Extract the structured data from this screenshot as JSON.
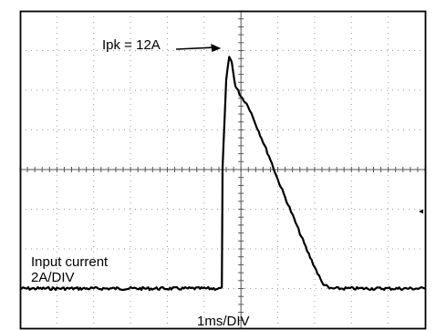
{
  "chart_data": {
    "type": "line",
    "title": "",
    "annotation": "Ipk = 12A",
    "channel_label": "Input current",
    "vertical_scale": "2A/DIV",
    "time_scale": "1ms/DIV",
    "grid": true,
    "x_unit": "ms",
    "y_unit": "A",
    "xlim": [
      0,
      11
    ],
    "ylim": [
      -2.0,
      14.0
    ],
    "series": [
      {
        "color": "#000000",
        "x": [
          0.0,
          1.0,
          2.0,
          3.0,
          4.0,
          5.0,
          5.48,
          5.5,
          5.6,
          5.68,
          5.75,
          5.85,
          6.0,
          6.2,
          6.4,
          6.6,
          6.8,
          7.0,
          7.2,
          7.4,
          7.6,
          7.8,
          8.0,
          8.2,
          8.4,
          8.6,
          8.8,
          9.0,
          10.0,
          11.0
        ],
        "y": [
          0.0,
          0.0,
          0.0,
          0.0,
          0.0,
          0.0,
          0.0,
          6.0,
          10.5,
          11.7,
          11.4,
          10.2,
          9.7,
          9.2,
          8.3,
          7.4,
          6.5,
          5.5,
          4.6,
          3.7,
          2.8,
          1.9,
          1.1,
          0.3,
          0.0,
          0.0,
          0.0,
          0.0,
          0.0,
          0.0
        ]
      }
    ]
  }
}
